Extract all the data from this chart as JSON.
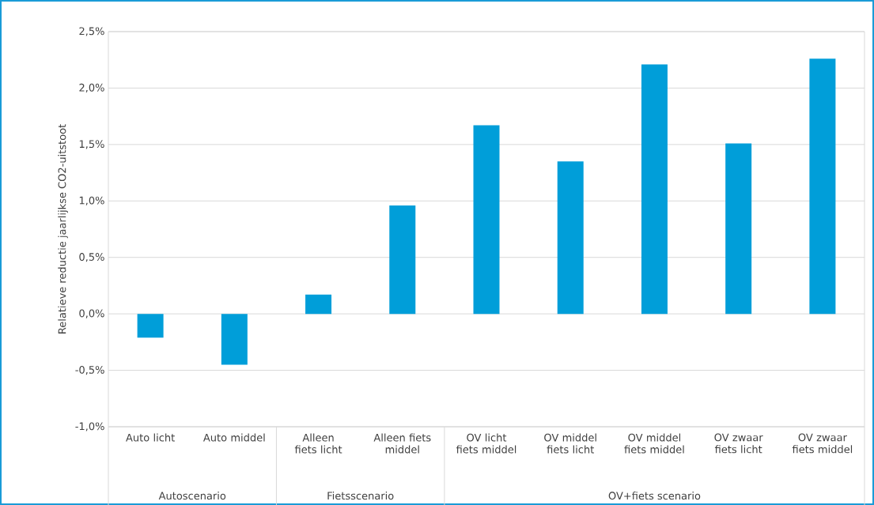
{
  "chart_data": {
    "type": "bar",
    "ylabel": "Relatieve reductie jaarlijkse CO2-uitstoot",
    "categories": [
      "Auto licht",
      "Auto middel",
      "Alleen fiets licht",
      "Alleen fiets middel",
      "OV licht fiets middel",
      "OV middel fiets licht",
      "OV middel fiets middel",
      "OV zwaar fiets licht",
      "OV zwaar fiets middel"
    ],
    "values": [
      -0.21,
      -0.45,
      0.17,
      0.96,
      1.67,
      1.35,
      2.21,
      1.51,
      2.26
    ],
    "color": "#009ed9",
    "ylim": [
      -1.0,
      2.5
    ],
    "yticks": [
      {
        "value": -1.0,
        "label": "-1,0%"
      },
      {
        "value": -0.5,
        "label": "-0,5%"
      },
      {
        "value": 0.0,
        "label": "0,0%"
      },
      {
        "value": 0.5,
        "label": "0,5%"
      },
      {
        "value": 1.0,
        "label": "1,0%"
      },
      {
        "value": 1.5,
        "label": "1,5%"
      },
      {
        "value": 2.0,
        "label": "2,0%"
      },
      {
        "value": 2.5,
        "label": "2,5%"
      }
    ],
    "grid": "y",
    "annotations": [
      "Autoscenario",
      "Fietsscenario",
      "OV+fiets scenario"
    ]
  }
}
